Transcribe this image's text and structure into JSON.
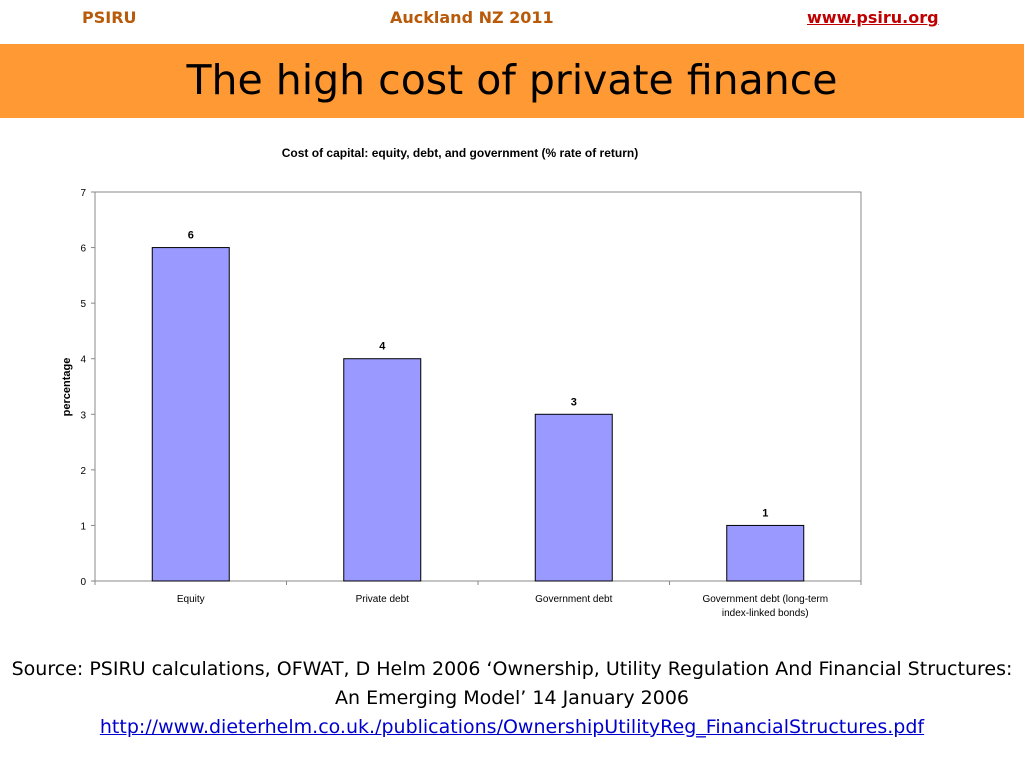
{
  "header": {
    "left": "PSIRU",
    "center": "Auckland NZ 2011",
    "right_link": "www.psiru.org"
  },
  "slide_title": "The high cost of private finance",
  "chart_data": {
    "type": "bar",
    "title": "Cost of capital: equity, debt, and government (% rate of return)",
    "xlabel": "",
    "ylabel": "percentage",
    "categories": [
      "Equity",
      "Private debt",
      "Government debt",
      "Government debt (long-term index-linked bonds)"
    ],
    "category_label_lines": [
      [
        "Equity"
      ],
      [
        "Private debt"
      ],
      [
        "Government debt"
      ],
      [
        "Government debt (long-term",
        "index-linked bonds)"
      ]
    ],
    "values": [
      6,
      4,
      3,
      1
    ],
    "data_labels": [
      "6",
      "4",
      "3",
      "1"
    ],
    "ylim": [
      0,
      7
    ],
    "yticks": [
      0,
      1,
      2,
      3,
      4,
      5,
      6,
      7
    ],
    "grid": false,
    "legend": "none",
    "bar_color": "#9999FF",
    "bar_edge_color": "#000000"
  },
  "source": {
    "text": "Source: PSIRU calculations, OFWAT, D Helm 2006 ‘Ownership, Utility Regulation And Financial Structures: An Emerging Model’ 14 January 2006",
    "link": "http://www.dieterhelm.co.uk./publications/OwnershipUtilityReg_FinancialStructures.pdf"
  }
}
